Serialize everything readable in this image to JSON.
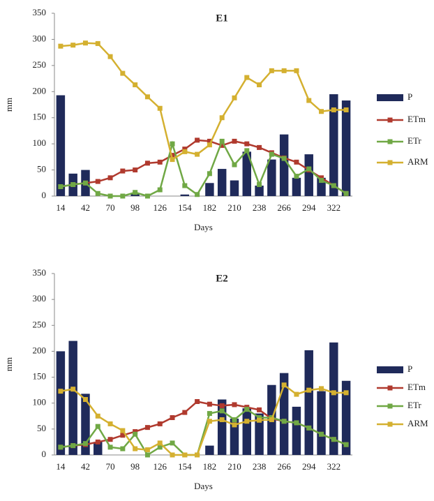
{
  "chart_data": [
    {
      "type": "combo",
      "title": "E1",
      "x_label": "Days",
      "y_label": "mm",
      "categories": [
        14,
        null,
        42,
        null,
        70,
        null,
        98,
        null,
        126,
        null,
        154,
        null,
        182,
        null,
        210,
        null,
        238,
        null,
        266,
        null,
        294,
        null,
        322,
        null
      ],
      "ylim": [
        0,
        350
      ],
      "yticks": [
        0,
        50,
        100,
        150,
        200,
        250,
        300,
        350
      ],
      "legend": "right",
      "series": [
        {
          "name": "P",
          "type": "bar",
          "color": "#1f2a5a",
          "values": [
            193,
            43,
            50,
            0,
            0,
            0,
            5,
            0,
            0,
            0,
            3,
            0,
            25,
            52,
            30,
            85,
            20,
            70,
            118,
            35,
            80,
            35,
            195,
            183
          ]
        },
        {
          "name": "ETm",
          "type": "line",
          "color": "#b03a2e",
          "values": [
            18,
            22,
            25,
            28,
            35,
            48,
            50,
            63,
            65,
            78,
            90,
            107,
            105,
            97,
            105,
            100,
            93,
            83,
            73,
            65,
            50,
            35,
            20,
            5
          ]
        },
        {
          "name": "ETr",
          "type": "line",
          "color": "#70a845",
          "values": [
            18,
            22,
            25,
            5,
            0,
            0,
            7,
            0,
            12,
            100,
            20,
            3,
            43,
            105,
            60,
            87,
            22,
            80,
            72,
            38,
            52,
            30,
            20,
            5
          ]
        },
        {
          "name": "ARM",
          "type": "line",
          "color": "#d4b030",
          "values": [
            287,
            289,
            293,
            292,
            267,
            235,
            213,
            190,
            168,
            70,
            85,
            80,
            98,
            150,
            188,
            227,
            213,
            240,
            240,
            240,
            183,
            162,
            165,
            165
          ]
        }
      ]
    },
    {
      "type": "combo",
      "title": "E2",
      "x_label": "Days",
      "y_label": "mm",
      "categories": [
        14,
        null,
        42,
        null,
        70,
        null,
        98,
        null,
        126,
        null,
        154,
        null,
        182,
        null,
        210,
        null,
        238,
        null,
        266,
        null,
        294,
        null,
        322,
        null
      ],
      "ylim": [
        0,
        350
      ],
      "yticks": [
        0,
        50,
        100,
        150,
        200,
        250,
        300,
        350
      ],
      "legend": "right",
      "series": [
        {
          "name": "P",
          "type": "bar",
          "color": "#1f2a5a",
          "values": [
            200,
            220,
            118,
            25,
            0,
            0,
            0,
            0,
            0,
            0,
            0,
            0,
            18,
            107,
            70,
            90,
            80,
            135,
            158,
            93,
            202,
            123,
            217,
            143
          ]
        },
        {
          "name": "ETm",
          "type": "line",
          "color": "#b03a2e",
          "values": [
            15,
            18,
            20,
            25,
            30,
            38,
            45,
            53,
            60,
            72,
            82,
            103,
            98,
            95,
            97,
            92,
            87,
            70,
            65,
            62,
            52,
            40,
            30,
            20
          ]
        },
        {
          "name": "ETr",
          "type": "line",
          "color": "#70a845",
          "values": [
            15,
            18,
            22,
            55,
            15,
            12,
            40,
            0,
            15,
            23,
            0,
            0,
            80,
            85,
            68,
            88,
            72,
            72,
            65,
            62,
            52,
            40,
            30,
            20
          ]
        },
        {
          "name": "ARM",
          "type": "line",
          "color": "#d4b030",
          "values": [
            123,
            127,
            107,
            75,
            60,
            47,
            12,
            10,
            23,
            0,
            0,
            0,
            65,
            68,
            58,
            65,
            67,
            68,
            135,
            117,
            125,
            128,
            120,
            120
          ]
        }
      ]
    }
  ]
}
